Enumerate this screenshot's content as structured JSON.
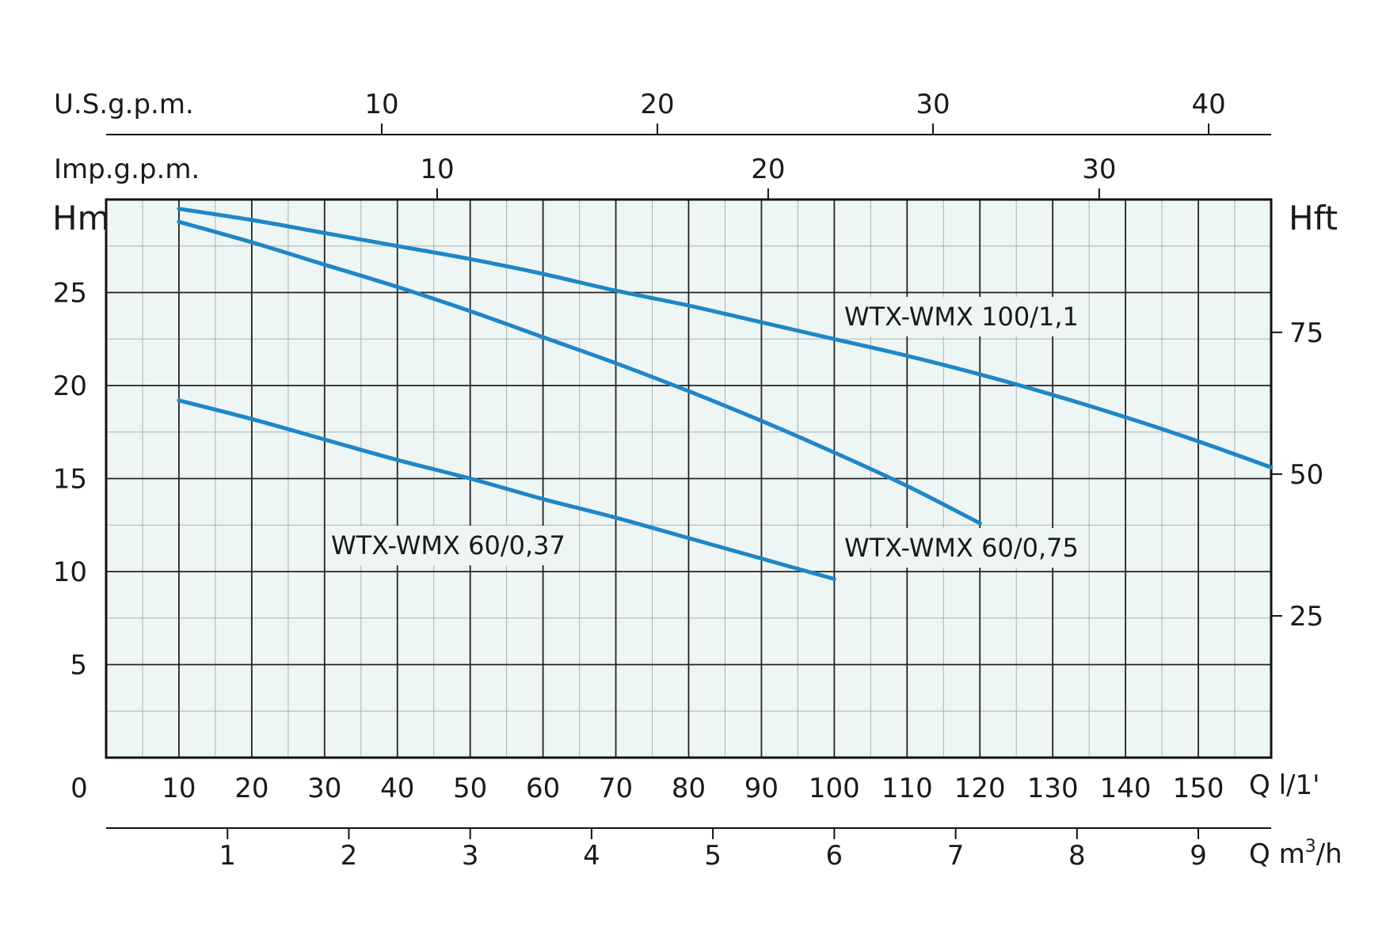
{
  "chart_data": {
    "type": "line",
    "colors": {
      "curve": "#1f86c8",
      "plot_background": "#eef6f5",
      "major_grid": "#222222",
      "minor_grid": "#a8b2b1",
      "frame": "#111111"
    },
    "grid": true,
    "axes": {
      "left": {
        "label": "Hm",
        "ticks": [
          "5",
          "10",
          "15",
          "20",
          "25"
        ],
        "range": [
          0,
          30
        ]
      },
      "right": {
        "label": "Hft",
        "ticks": [
          "25",
          "50",
          "75"
        ]
      },
      "top_us": {
        "label": "U.S.g.p.m.",
        "ticks": [
          "10",
          "20",
          "30",
          "40"
        ]
      },
      "top_imp": {
        "label": "Imp.g.p.m.",
        "ticks": [
          "10",
          "20",
          "30"
        ]
      },
      "bottom_lpm": {
        "label": "Q l/1'",
        "origin": "0",
        "ticks": [
          "10",
          "20",
          "30",
          "40",
          "50",
          "60",
          "70",
          "80",
          "90",
          "100",
          "110",
          "120",
          "130",
          "140",
          "150"
        ],
        "range": [
          0,
          160
        ]
      },
      "bottom_m3h": {
        "label_prefix": "Q m",
        "label_sup": "3",
        "label_suffix": "/h",
        "ticks": [
          "1",
          "2",
          "3",
          "4",
          "5",
          "6",
          "7",
          "8",
          "9"
        ]
      }
    },
    "series": [
      {
        "name": "WTX-WMX 100/1,1",
        "x": [
          10,
          20,
          30,
          40,
          50,
          60,
          70,
          80,
          90,
          100,
          110,
          120,
          130,
          140,
          150,
          160
        ],
        "y": [
          29.5,
          28.9,
          28.2,
          27.5,
          26.8,
          26.0,
          25.1,
          24.3,
          23.4,
          22.5,
          21.6,
          20.6,
          19.5,
          18.3,
          17.0,
          15.6
        ]
      },
      {
        "name": "WTX-WMX 60/0,75",
        "x": [
          10,
          20,
          30,
          40,
          50,
          60,
          70,
          80,
          90,
          100,
          110,
          120
        ],
        "y": [
          28.8,
          27.7,
          26.5,
          25.3,
          24.0,
          22.6,
          21.2,
          19.7,
          18.1,
          16.4,
          14.6,
          12.6
        ]
      },
      {
        "name": "WTX-WMX 60/0,37",
        "x": [
          10,
          20,
          30,
          40,
          50,
          60,
          70,
          80,
          90,
          100
        ],
        "y": [
          19.2,
          18.2,
          17.1,
          16.0,
          15.0,
          13.9,
          12.9,
          11.8,
          10.7,
          9.6
        ]
      }
    ]
  }
}
